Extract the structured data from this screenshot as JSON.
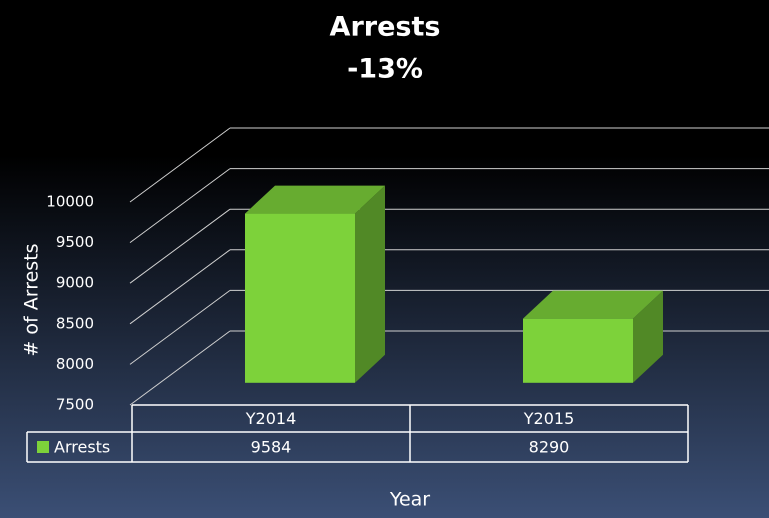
{
  "chart_data": {
    "type": "bar3d",
    "title": "Arrests",
    "subtitle": "-13%",
    "y_label": "# of Arrests",
    "x_label": "Year",
    "categories": [
      "Y2014",
      "Y2015"
    ],
    "series": [
      {
        "name": "Arrests",
        "color": "#7dd23a",
        "values": [
          9584,
          8290
        ]
      }
    ],
    "ylim": [
      7500,
      10000
    ],
    "yticks": [
      7500,
      8000,
      8500,
      9000,
      9500,
      10000
    ],
    "grid": true,
    "data_table": true
  }
}
